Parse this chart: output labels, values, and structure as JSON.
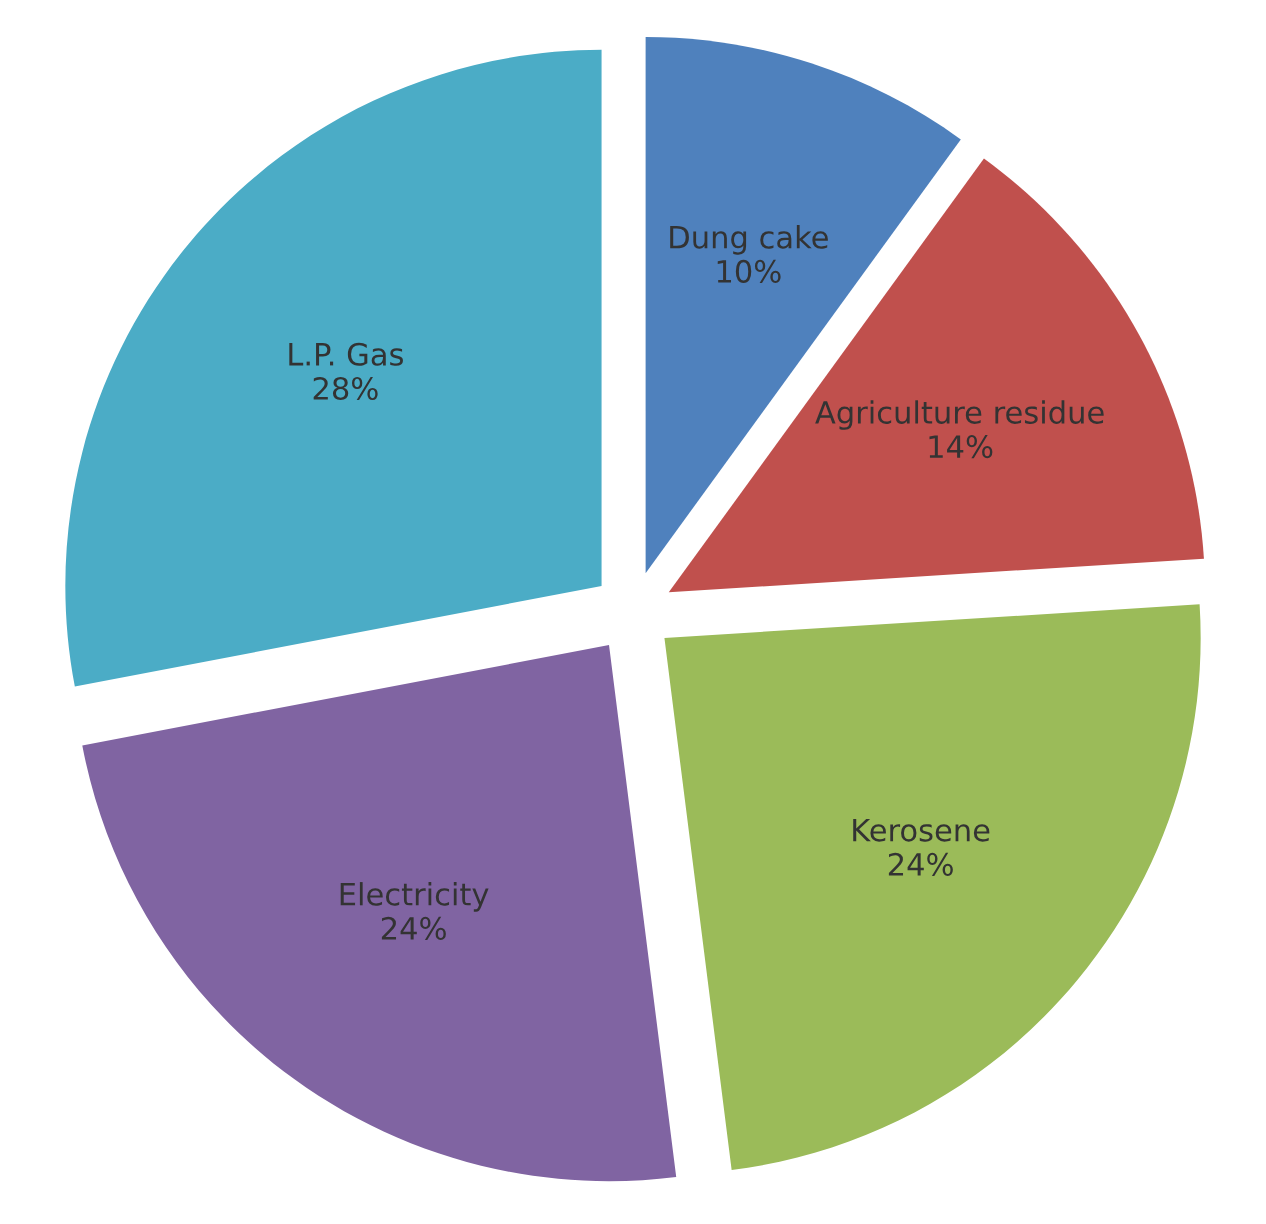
{
  "chart_data": {
    "type": "pie",
    "categories": [
      "Dung cake",
      "Agriculture residue",
      "Kerosene",
      "Electricity",
      "L.P. Gas"
    ],
    "values": [
      10,
      14,
      24,
      24,
      28
    ],
    "value_labels": [
      "10%",
      "14%",
      "24%",
      "24%",
      "28%"
    ],
    "colors": [
      "#4f81bd",
      "#c0504d",
      "#9bbb59",
      "#8064a2",
      "#4bacc6"
    ],
    "legend": false
  }
}
